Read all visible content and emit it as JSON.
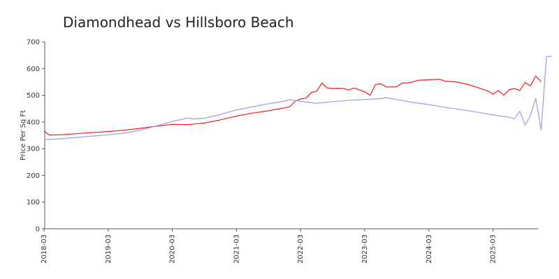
{
  "chart_data": {
    "type": "line",
    "title": "Diamondhead vs Hillsboro Beach",
    "xlabel": "",
    "ylabel": "Price Per Sq Ft",
    "ylim": [
      0,
      700
    ],
    "yticks": [
      0,
      100,
      200,
      300,
      400,
      500,
      600,
      700
    ],
    "x_ticks": [
      "2018-03",
      "2019-03",
      "2020-03",
      "2021-03",
      "2022-03",
      "2023-03",
      "2024-03",
      "2025-03"
    ],
    "x_range": [
      "2018-03",
      "2025-10"
    ],
    "grid": false,
    "series": [
      {
        "color": "#ee1c1c",
        "points": [
          [
            "2018-03",
            365
          ],
          [
            "2018-04",
            351
          ],
          [
            "2018-06",
            352
          ],
          [
            "2018-09",
            356
          ],
          [
            "2018-12",
            360
          ],
          [
            "2019-03",
            364
          ],
          [
            "2019-06",
            369
          ],
          [
            "2019-09",
            376
          ],
          [
            "2019-12",
            384
          ],
          [
            "2020-03",
            391
          ],
          [
            "2020-06",
            390
          ],
          [
            "2020-09",
            396
          ],
          [
            "2020-12",
            408
          ],
          [
            "2021-03",
            422
          ],
          [
            "2021-06",
            433
          ],
          [
            "2021-09",
            442
          ],
          [
            "2021-12",
            453
          ],
          [
            "2022-01",
            457
          ],
          [
            "2022-02",
            478
          ],
          [
            "2022-03",
            486
          ],
          [
            "2022-04",
            489
          ],
          [
            "2022-05",
            510
          ],
          [
            "2022-06",
            515
          ],
          [
            "2022-07",
            546
          ],
          [
            "2022-08",
            527
          ],
          [
            "2022-09",
            525
          ],
          [
            "2022-10",
            526
          ],
          [
            "2022-11",
            525
          ],
          [
            "2022-12",
            520
          ],
          [
            "2023-01",
            527
          ],
          [
            "2023-02",
            520
          ],
          [
            "2023-03",
            513
          ],
          [
            "2023-04",
            500
          ],
          [
            "2023-05",
            540
          ],
          [
            "2023-06",
            543
          ],
          [
            "2023-07",
            531
          ],
          [
            "2023-08",
            531
          ],
          [
            "2023-09",
            532
          ],
          [
            "2023-10",
            546
          ],
          [
            "2023-11",
            546
          ],
          [
            "2023-12",
            550
          ],
          [
            "2024-01",
            556
          ],
          [
            "2024-03",
            558
          ],
          [
            "2024-05",
            560
          ],
          [
            "2024-06",
            553
          ],
          [
            "2024-08",
            550
          ],
          [
            "2024-10",
            542
          ],
          [
            "2024-12",
            530
          ],
          [
            "2025-02",
            516
          ],
          [
            "2025-03",
            504
          ],
          [
            "2025-04",
            518
          ],
          [
            "2025-05",
            500
          ],
          [
            "2025-06",
            521
          ],
          [
            "2025-07",
            525
          ],
          [
            "2025-08",
            518
          ],
          [
            "2025-09",
            548
          ],
          [
            "2025-10",
            535
          ],
          [
            "2025-11",
            572
          ],
          [
            "2025-12",
            550
          ]
        ]
      },
      {
        "color": "#9b9bea",
        "points": [
          [
            "2018-03",
            334
          ],
          [
            "2018-06",
            337
          ],
          [
            "2018-09",
            342
          ],
          [
            "2018-12",
            347
          ],
          [
            "2019-03",
            352
          ],
          [
            "2019-06",
            358
          ],
          [
            "2019-09",
            369
          ],
          [
            "2019-12",
            385
          ],
          [
            "2020-03",
            402
          ],
          [
            "2020-06",
            415
          ],
          [
            "2020-07",
            411
          ],
          [
            "2020-09",
            414
          ],
          [
            "2020-12",
            428
          ],
          [
            "2021-03",
            445
          ],
          [
            "2021-06",
            457
          ],
          [
            "2021-09",
            468
          ],
          [
            "2021-12",
            478
          ],
          [
            "2022-01",
            484
          ],
          [
            "2022-03",
            477
          ],
          [
            "2022-06",
            470
          ],
          [
            "2022-09",
            476
          ],
          [
            "2022-12",
            481
          ],
          [
            "2023-03",
            484
          ],
          [
            "2023-06",
            487
          ],
          [
            "2023-07",
            491
          ],
          [
            "2023-09",
            484
          ],
          [
            "2023-12",
            473
          ],
          [
            "2024-03",
            465
          ],
          [
            "2024-06",
            455
          ],
          [
            "2024-09",
            446
          ],
          [
            "2024-12",
            437
          ],
          [
            "2025-03",
            426
          ],
          [
            "2025-06",
            418
          ],
          [
            "2025-07",
            412
          ],
          [
            "2025-08",
            440
          ],
          [
            "2025-09",
            388
          ],
          [
            "2025-10",
            424
          ],
          [
            "2025-11",
            488
          ],
          [
            "2025-12",
            370
          ],
          [
            "2026-01",
            646
          ],
          [
            "2026-02",
            646
          ]
        ]
      }
    ]
  }
}
